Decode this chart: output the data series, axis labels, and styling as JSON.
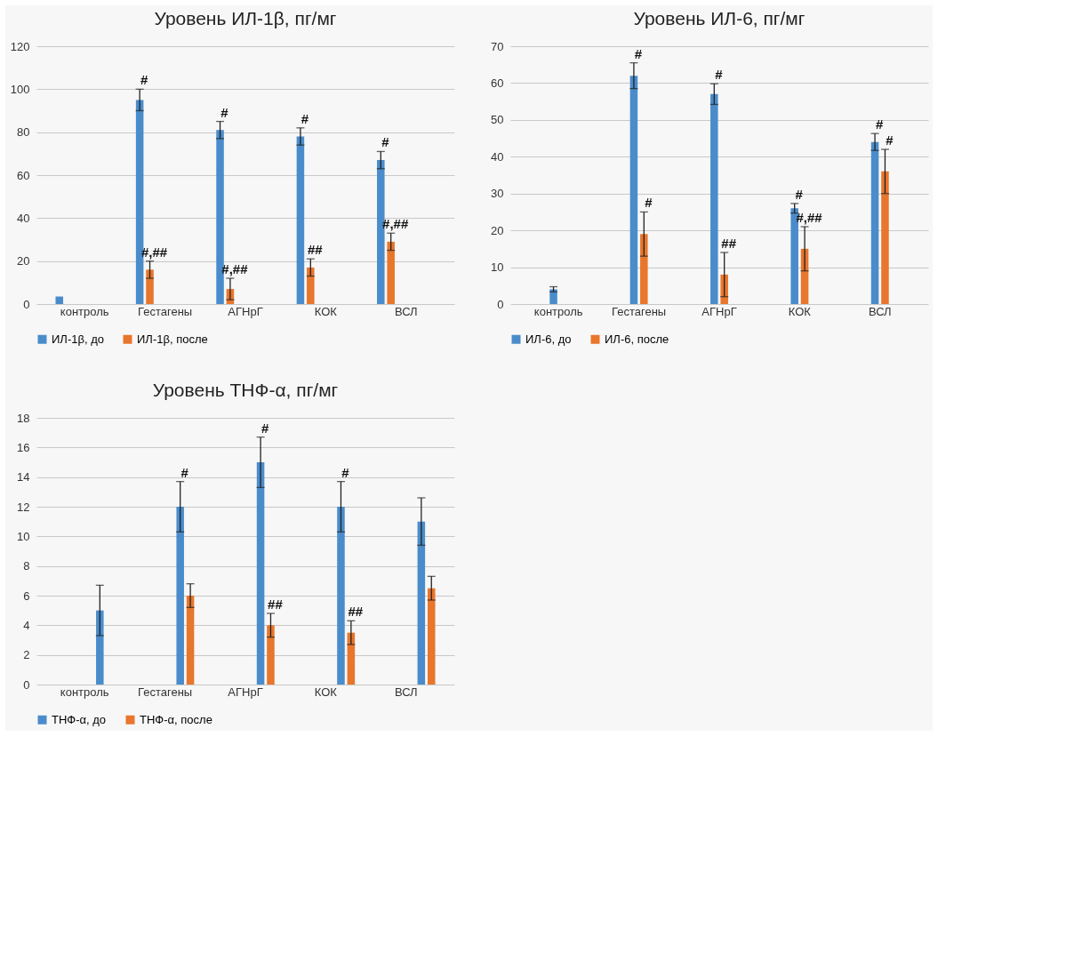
{
  "chart_data": [
    {
      "type": "bar",
      "title": "Уровень  ИЛ-1β, пг/мг",
      "categories": [
        "контроль",
        "Гестагены",
        "АГНрГ",
        "КОК",
        "ВСЛ"
      ],
      "series": [
        {
          "name": "ИЛ-1β, до",
          "color": "#4a8ccb",
          "values": [
            3.5,
            95,
            81,
            78,
            67
          ],
          "errors": [
            null,
            5,
            4,
            4,
            4
          ],
          "value_labels": [
            null,
            "#",
            "#",
            "#",
            "#"
          ]
        },
        {
          "name": "ИЛ-1β,  после",
          "color": "#e8762c",
          "values": [
            null,
            16,
            7,
            17,
            29
          ],
          "errors": [
            null,
            4,
            5,
            4,
            4
          ],
          "value_labels": [
            null,
            "#,##",
            "#,##",
            "##",
            "#,##"
          ]
        }
      ],
      "ylim": [
        0,
        120
      ],
      "yticks": [
        0,
        20,
        40,
        60,
        80,
        100,
        120
      ],
      "grid": "y",
      "legend": "bottom"
    },
    {
      "type": "bar",
      "title": "Уровень ИЛ-6, пг/мг",
      "categories": [
        "контроль",
        "Гестагены",
        "АГНрГ",
        "КОК",
        "ВСЛ"
      ],
      "series": [
        {
          "name": "ИЛ-6, до",
          "color": "#4a8ccb",
          "values": [
            4,
            62,
            57,
            26,
            44
          ],
          "errors": [
            0.7,
            3.5,
            2.8,
            1.3,
            2.3
          ],
          "value_labels": [
            null,
            "#",
            "#",
            "#",
            "#"
          ]
        },
        {
          "name": "ИЛ-6, после",
          "color": "#e8762c",
          "values": [
            null,
            19,
            8,
            15,
            36
          ],
          "errors": [
            null,
            6,
            6,
            6,
            6
          ],
          "value_labels": [
            null,
            "#",
            "##",
            "#,##",
            "#"
          ]
        }
      ],
      "ylim": [
        0,
        70
      ],
      "yticks": [
        0,
        10,
        20,
        30,
        40,
        50,
        60,
        70
      ],
      "grid": "y",
      "legend": "bottom"
    },
    {
      "type": "bar",
      "title": "Уровень ТНФ-α, пг/мг",
      "categories": [
        "контроль",
        "Гестагены",
        "АГНрГ",
        "КОК",
        "ВСЛ"
      ],
      "series": [
        {
          "name": "ТНФ-α, до",
          "color": "#4a8ccb",
          "values": [
            5,
            12,
            15,
            12,
            11
          ],
          "errors": [
            1.7,
            1.7,
            1.7,
            1.7,
            1.6
          ],
          "value_labels": [
            null,
            "#",
            "#",
            "#",
            null
          ]
        },
        {
          "name": "ТНФ-α, после",
          "color": "#e8762c",
          "values": [
            null,
            6,
            4,
            3.5,
            6.5
          ],
          "errors": [
            null,
            0.8,
            0.8,
            0.8,
            0.8
          ],
          "value_labels": [
            null,
            null,
            "##",
            "##",
            null
          ]
        }
      ],
      "ylim": [
        0,
        18
      ],
      "yticks": [
        0,
        2,
        4,
        6,
        8,
        10,
        12,
        14,
        16,
        18
      ],
      "grid": "y",
      "legend": "bottom"
    }
  ]
}
